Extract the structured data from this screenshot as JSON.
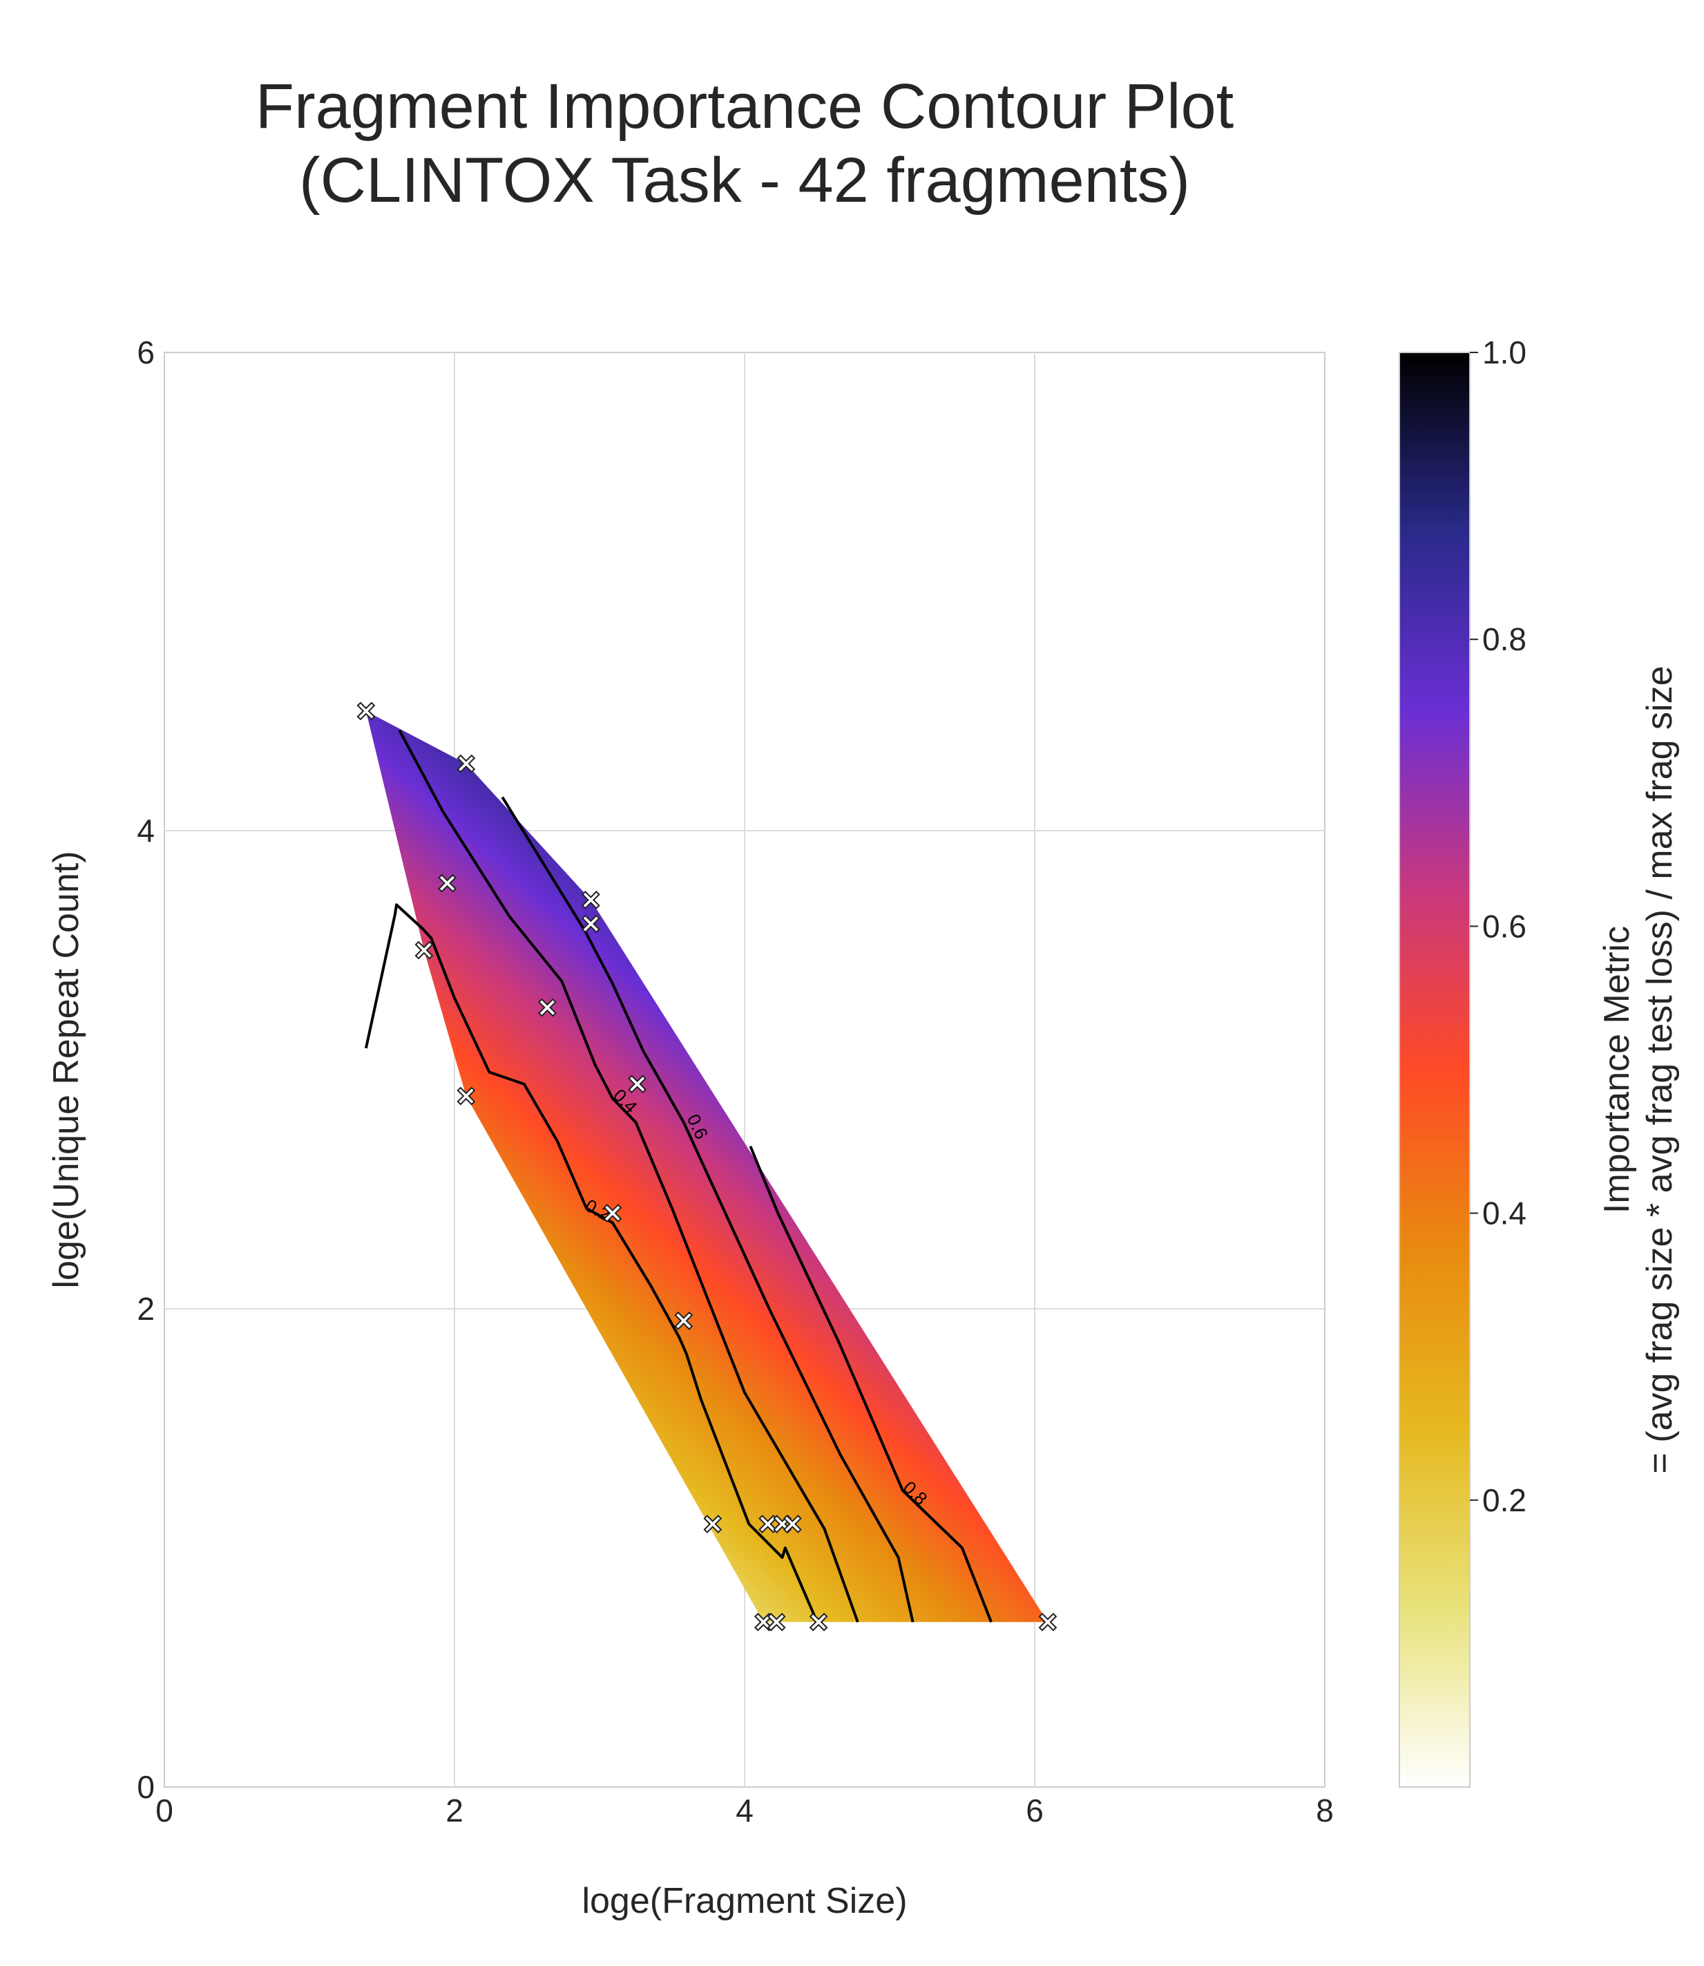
{
  "chart_data": {
    "type": "contour",
    "title": [
      "Fragment Importance Contour Plot",
      "(CLINTOX Task - 42 fragments)"
    ],
    "xlabel": "loge(Fragment Size)",
    "ylabel": "loge(Unique Repeat Count)",
    "xlim": [
      0,
      8
    ],
    "ylim": [
      0,
      6
    ],
    "xticks": [
      0,
      2,
      4,
      6,
      8
    ],
    "yticks": [
      0,
      2,
      4,
      6
    ],
    "grid": true,
    "colorbar": {
      "label": [
        "Importance Metric",
        "= (avg frag size * avg frag test loss) / max frag size"
      ],
      "range": [
        0.0,
        1.0
      ],
      "ticks": [
        0.2,
        0.4,
        0.6,
        0.8,
        1.0
      ],
      "tick_labels": [
        "0.2",
        "0.4",
        "0.6",
        "0.8",
        "1.0"
      ],
      "colormap": "CMRmap_r",
      "stops": [
        "#ffffff",
        "#e8e27a",
        "#e6b81f",
        "#e88a10",
        "#ff4a26",
        "#c8387e",
        "#6a2fd4",
        "#2a2a8a",
        "#000000"
      ]
    },
    "contour_levels": [
      0.2,
      0.4,
      0.6,
      0.8
    ],
    "contour_level_labels": [
      "0.2",
      "0.4",
      "0.6",
      "0.8"
    ],
    "fragments": [
      {
        "x": 1.39,
        "y": 4.5
      },
      {
        "x": 2.08,
        "y": 4.28
      },
      {
        "x": 1.95,
        "y": 3.78
      },
      {
        "x": 1.79,
        "y": 3.5
      },
      {
        "x": 2.64,
        "y": 3.26
      },
      {
        "x": 2.94,
        "y": 3.71
      },
      {
        "x": 2.94,
        "y": 3.61
      },
      {
        "x": 2.08,
        "y": 2.89
      },
      {
        "x": 3.26,
        "y": 2.94
      },
      {
        "x": 3.09,
        "y": 2.4
      },
      {
        "x": 3.58,
        "y": 1.95
      },
      {
        "x": 3.78,
        "y": 1.1
      },
      {
        "x": 4.16,
        "y": 1.1
      },
      {
        "x": 4.26,
        "y": 1.1
      },
      {
        "x": 4.33,
        "y": 1.1
      },
      {
        "x": 4.13,
        "y": 0.69
      },
      {
        "x": 4.22,
        "y": 0.69
      },
      {
        "x": 4.51,
        "y": 0.69
      },
      {
        "x": 6.09,
        "y": 0.69
      }
    ],
    "contours": [
      {
        "level": 0.2,
        "points": [
          [
            1.39,
            3.09
          ],
          [
            1.59,
            3.65
          ],
          [
            1.6,
            3.69
          ],
          [
            1.78,
            3.59
          ],
          [
            1.84,
            3.55
          ],
          [
            2.0,
            3.3
          ],
          [
            2.24,
            2.99
          ],
          [
            2.48,
            2.94
          ],
          [
            2.71,
            2.7
          ],
          [
            2.91,
            2.42
          ],
          [
            3.09,
            2.36
          ],
          [
            3.35,
            2.1
          ],
          [
            3.55,
            1.88
          ],
          [
            3.6,
            1.81
          ],
          [
            3.7,
            1.62
          ],
          [
            4.03,
            1.1
          ],
          [
            4.26,
            0.96
          ],
          [
            4.28,
            1.0
          ],
          [
            4.5,
            0.69
          ]
        ]
      },
      {
        "level": 0.4,
        "points": [
          [
            1.62,
            4.42
          ],
          [
            1.92,
            4.08
          ],
          [
            2.38,
            3.64
          ],
          [
            2.74,
            3.37
          ],
          [
            2.97,
            3.02
          ],
          [
            3.09,
            2.88
          ],
          [
            3.25,
            2.78
          ],
          [
            3.5,
            2.42
          ],
          [
            4.0,
            1.65
          ],
          [
            4.55,
            1.08
          ],
          [
            4.78,
            0.69
          ]
        ]
      },
      {
        "level": 0.6,
        "points": [
          [
            2.33,
            4.14
          ],
          [
            2.9,
            3.58
          ],
          [
            3.09,
            3.36
          ],
          [
            3.3,
            3.08
          ],
          [
            3.58,
            2.78
          ],
          [
            4.17,
            2.0
          ],
          [
            4.66,
            1.39
          ],
          [
            5.06,
            0.96
          ],
          [
            5.16,
            0.69
          ]
        ]
      },
      {
        "level": 0.8,
        "points": [
          [
            4.04,
            2.68
          ],
          [
            4.23,
            2.4
          ],
          [
            4.65,
            1.86
          ],
          [
            5.09,
            1.24
          ],
          [
            5.5,
            1.0
          ],
          [
            5.7,
            0.69
          ]
        ]
      }
    ]
  }
}
